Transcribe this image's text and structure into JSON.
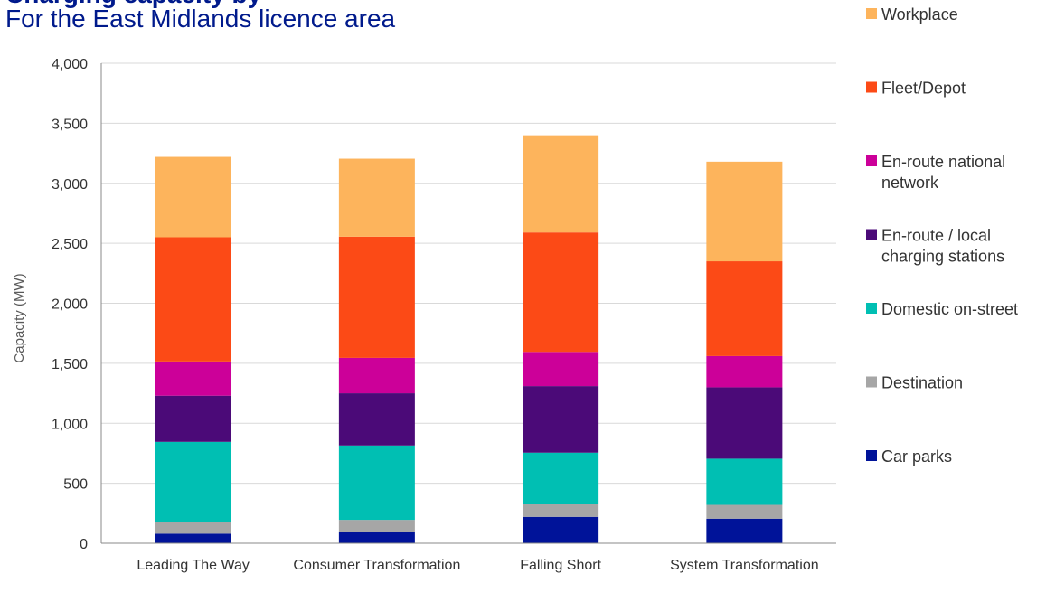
{
  "title": "Charging capacity by",
  "subtitle": "For the East Midlands licence area",
  "chart_data": {
    "type": "bar",
    "stacked": true,
    "categories": [
      "Leading The Way",
      "Consumer Transformation",
      "Falling Short",
      "System Transformation"
    ],
    "ylabel": "Capacity (MW)",
    "ylim": [
      0,
      4000
    ],
    "yticks": [
      0,
      500,
      1000,
      1500,
      2000,
      2500,
      3000,
      3500,
      4000
    ],
    "ytick_labels": [
      "0",
      "500",
      "1,000",
      "1,500",
      "2,000",
      "2,500",
      "3,000",
      "3,500",
      "4,000"
    ],
    "grid": true,
    "legend_position": "right",
    "series": [
      {
        "name": "Car parks",
        "color": "#001399",
        "values": [
          80,
          95,
          220,
          205
        ]
      },
      {
        "name": "Destination",
        "color": "#a6a6a6",
        "values": [
          95,
          100,
          105,
          115
        ]
      },
      {
        "name": "Domestic on-street",
        "color": "#00bfb3",
        "values": [
          670,
          620,
          430,
          385
        ]
      },
      {
        "name": "En-route / local charging stations",
        "color": "#4b0a78",
        "values": [
          385,
          435,
          555,
          595
        ]
      },
      {
        "name": "En-route national network",
        "color": "#cc0099",
        "values": [
          285,
          295,
          285,
          260
        ]
      },
      {
        "name": "Fleet/Depot",
        "color": "#fc4a16",
        "values": [
          1035,
          1010,
          995,
          790
        ]
      },
      {
        "name": "Workplace",
        "color": "#fdb45c",
        "values": [
          670,
          650,
          810,
          830
        ]
      }
    ]
  }
}
